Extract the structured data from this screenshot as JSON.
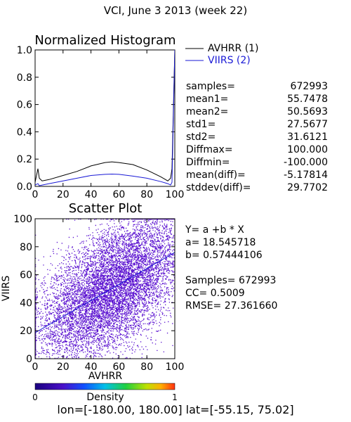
{
  "title": "VCI,  June 3 2013 (week 22)",
  "histogram": {
    "title": "Normalized Histogram",
    "xticks": [
      "0",
      "20",
      "40",
      "60",
      "80",
      "100"
    ],
    "yticks": [
      "0.0",
      "0.2",
      "0.4",
      "0.6",
      "0.8",
      "1.0"
    ],
    "legend": [
      {
        "label": "AVHRR (1)",
        "color": "#000000"
      },
      {
        "label": "VIIRS (2)",
        "color": "#1a1ad6"
      }
    ]
  },
  "stats": [
    {
      "label": "samples=",
      "value": "672993"
    },
    {
      "label": "mean1=",
      "value": "55.7478"
    },
    {
      "label": "mean2=",
      "value": "50.5693"
    },
    {
      "label": "std1=",
      "value": "27.5677"
    },
    {
      "label": "std2=",
      "value": "31.6121"
    },
    {
      "label": "Diffmax=",
      "value": "100.000"
    },
    {
      "label": "Diffmin=",
      "value": "-100.000"
    },
    {
      "label": "mean(diff)=",
      "value": "-5.17814"
    },
    {
      "label": "stddev(diff)=",
      "value": "29.7702"
    }
  ],
  "scatter": {
    "title": "Scatter Plot",
    "xlabel": "AVHRR",
    "ylabel": "VIIRS",
    "xticks": [
      "0",
      "20",
      "40",
      "60",
      "80",
      "100"
    ],
    "yticks": [
      "0",
      "20",
      "40",
      "60",
      "80",
      "100"
    ],
    "fit_lines": [
      "Y= a +b * X",
      "a= 18.545718",
      "b= 0.57444106",
      "",
      "Samples= 672993",
      "CC=  0.5009",
      "RMSE= 27.361660"
    ]
  },
  "colorbar": {
    "label": "Density",
    "min": "0",
    "max": "1"
  },
  "footer": "lon=[-180.00, 180.00] lat=[-55.15, 75.02]",
  "colors": {
    "viirs": "#1a1ad6",
    "avhrr": "#000000",
    "scatter": "#5a10d0"
  },
  "chart_data": [
    {
      "type": "line",
      "title": "Normalized Histogram",
      "xlabel": "",
      "ylabel": "",
      "xlim": [
        0,
        100
      ],
      "ylim": [
        0,
        1
      ],
      "x": [
        0,
        2,
        3,
        5,
        10,
        20,
        30,
        40,
        50,
        55,
        60,
        70,
        80,
        90,
        95,
        97,
        98,
        100
      ],
      "series": [
        {
          "name": "AVHRR (1)",
          "color": "#000000",
          "values": [
            0.03,
            0.13,
            0.06,
            0.04,
            0.05,
            0.08,
            0.11,
            0.15,
            0.175,
            0.18,
            0.175,
            0.16,
            0.12,
            0.07,
            0.04,
            0.06,
            0.13,
            1.0
          ]
        },
        {
          "name": "VIIRS (2)",
          "color": "#1a1ad6",
          "values": [
            0.01,
            0.02,
            0.005,
            0.01,
            0.02,
            0.04,
            0.06,
            0.08,
            0.088,
            0.09,
            0.088,
            0.075,
            0.06,
            0.035,
            0.02,
            0.01,
            0.03,
            1.0
          ]
        }
      ]
    },
    {
      "type": "scatter",
      "title": "Scatter Plot",
      "xlabel": "AVHRR",
      "ylabel": "VIIRS",
      "xlim": [
        0,
        100
      ],
      "ylim": [
        0,
        100
      ],
      "samples": 672993,
      "fit": {
        "a": 18.545718,
        "b": 0.57444106
      },
      "cc": 0.5009,
      "rmse": 27.36166
    }
  ]
}
